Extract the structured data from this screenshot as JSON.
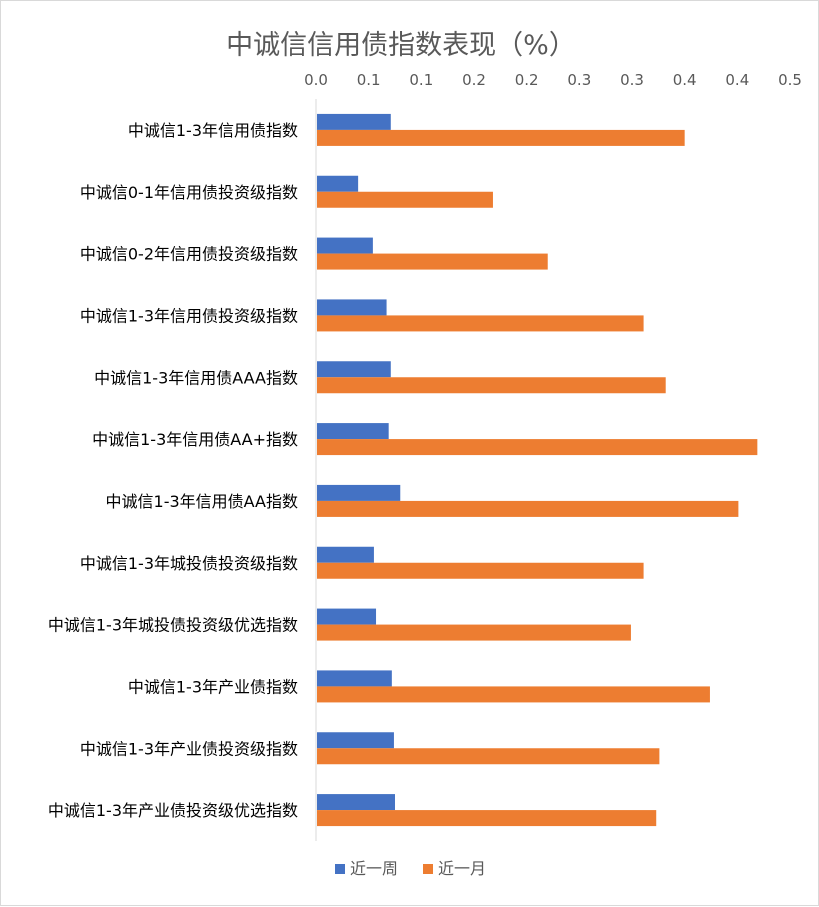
{
  "chart_data": {
    "type": "bar",
    "orientation": "horizontal",
    "title": "中诚信信用债指数表现（%）",
    "xlabel": "",
    "ylabel": "",
    "xlim": [
      0,
      0.45
    ],
    "tick_values": [
      0,
      0.05,
      0.1,
      0.15,
      0.2,
      0.25,
      0.3,
      0.35,
      0.4,
      0.45
    ],
    "tick_labels": [
      "0.0",
      "0.1",
      "0.1",
      "0.2",
      "0.2",
      "0.3",
      "0.3",
      "0.4",
      "0.4",
      "0.5"
    ],
    "axis_position": "top",
    "grid": false,
    "legend_position": "bottom",
    "categories": [
      "中诚信1-3年信用债指数",
      "中诚信0-1年信用债投资级指数",
      "中诚信0-2年信用债投资级指数",
      "中诚信1-3年信用债投资级指数",
      "中诚信1-3年信用债AAA指数",
      "中诚信1-3年信用债AA+指数",
      "中诚信1-3年信用债AA指数",
      "中诚信1-3年城投债投资级指数",
      "中诚信1-3年城投债投资级优选指数",
      "中诚信1-3年产业债指数",
      "中诚信1-3年产业债投资级指数",
      "中诚信1-3年产业债投资级优选指数"
    ],
    "series": [
      {
        "name": "近一周",
        "color": "#4472c4",
        "values": [
          0.071,
          0.04,
          0.054,
          0.067,
          0.071,
          0.069,
          0.08,
          0.055,
          0.057,
          0.072,
          0.074,
          0.075
        ]
      },
      {
        "name": "近一月",
        "color": "#ed7d31",
        "values": [
          0.35,
          0.168,
          0.22,
          0.311,
          0.332,
          0.419,
          0.401,
          0.311,
          0.299,
          0.374,
          0.326,
          0.323
        ]
      }
    ]
  }
}
